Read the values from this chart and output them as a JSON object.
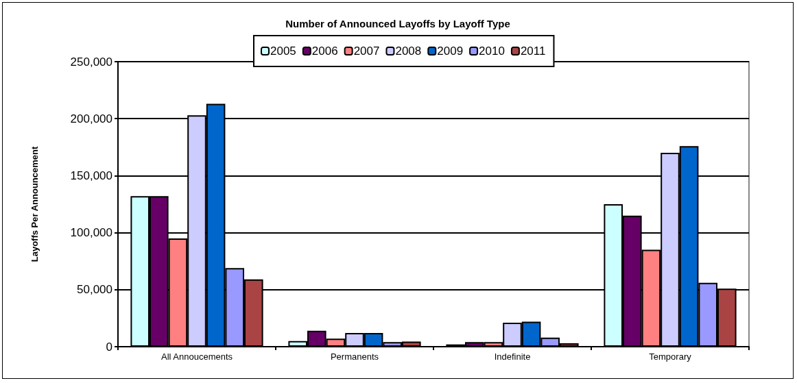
{
  "chart_data": {
    "type": "bar",
    "title": "Number of Announced Layoffs by Layoff Type",
    "ylabel": "Layoffs Per Announcement",
    "categories": [
      "All Annoucements",
      "Permanents",
      "Indefinite",
      "Temporary"
    ],
    "series": [
      {
        "name": "2005",
        "color": "#ccffff",
        "values": [
          132000,
          5000,
          2000,
          125000
        ]
      },
      {
        "name": "2006",
        "color": "#660066",
        "values": [
          132000,
          14000,
          4000,
          115000
        ]
      },
      {
        "name": "2007",
        "color": "#ff8080",
        "values": [
          95000,
          7000,
          4000,
          85000
        ]
      },
      {
        "name": "2008",
        "color": "#ccccff",
        "values": [
          203000,
          12000,
          21000,
          170000
        ]
      },
      {
        "name": "2009",
        "color": "#0066cc",
        "values": [
          213000,
          12000,
          22000,
          176000
        ]
      },
      {
        "name": "2010",
        "color": "#9999ff",
        "values": [
          69000,
          4000,
          8000,
          56000
        ]
      },
      {
        "name": "2011",
        "color": "#aa4444",
        "values": [
          59000,
          4500,
          3000,
          51000
        ]
      }
    ],
    "ylim": [
      0,
      250000
    ],
    "yticks": [
      0,
      {
        "value": 50000,
        "label": "50,000"
      },
      {
        "value": 100000,
        "label": "100,000"
      },
      {
        "value": 150000,
        "label": "150,000"
      },
      {
        "value": 200000,
        "label": "200,000"
      },
      {
        "value": 250000,
        "label": "250,000"
      }
    ],
    "grid": "y",
    "legend": "top"
  }
}
